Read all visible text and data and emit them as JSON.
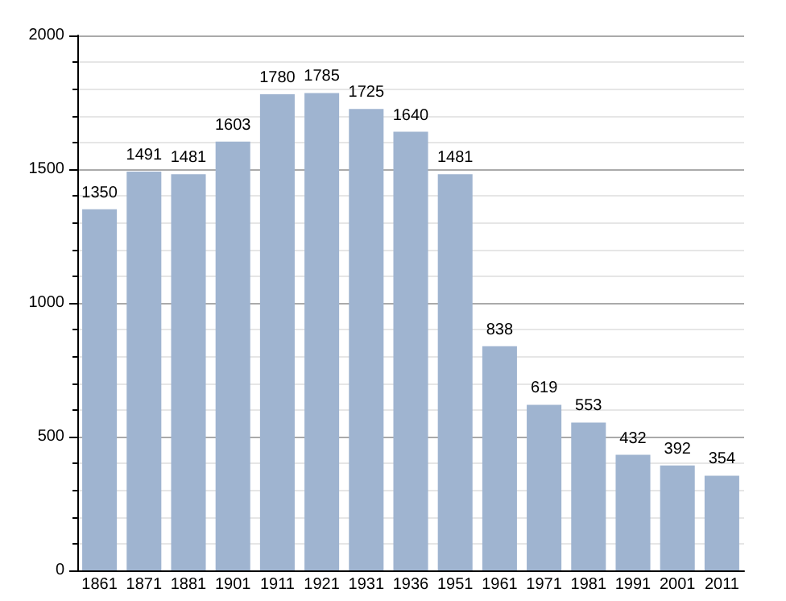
{
  "chart_data": {
    "type": "bar",
    "categories": [
      "1861",
      "1871",
      "1881",
      "1901",
      "1911",
      "1921",
      "1931",
      "1936",
      "1951",
      "1961",
      "1971",
      "1981",
      "1991",
      "2001",
      "2011"
    ],
    "values": [
      1350,
      1491,
      1481,
      1603,
      1780,
      1785,
      1725,
      1640,
      1481,
      838,
      619,
      553,
      432,
      392,
      354
    ],
    "color": "#9fb4d0",
    "ylim": [
      0,
      2000
    ],
    "yticks": [
      0,
      500,
      1000,
      1500,
      2000
    ],
    "grid": "y",
    "data_labels": true
  }
}
